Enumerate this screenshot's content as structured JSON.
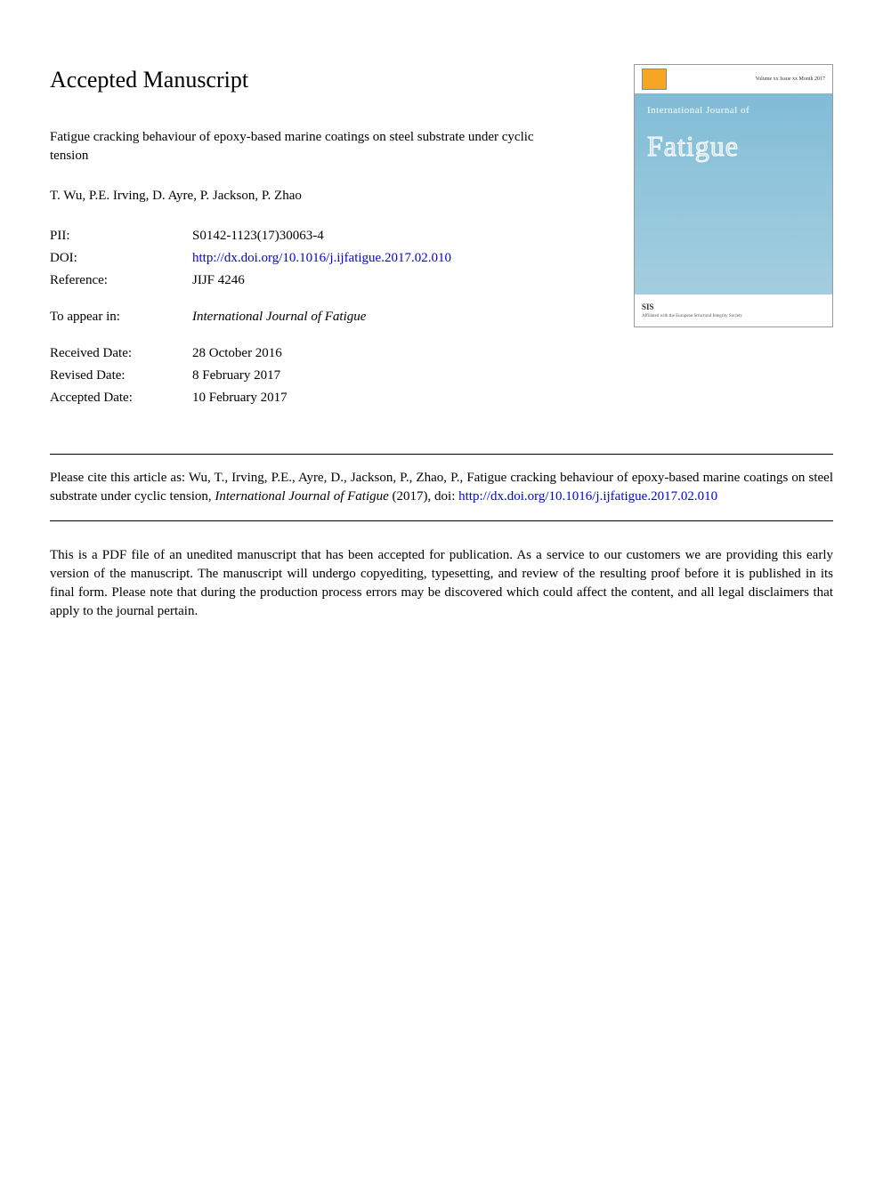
{
  "page": {
    "title": "Accepted Manuscript"
  },
  "article": {
    "title": "Fatigue cracking behaviour of epoxy-based marine coatings on steel substrate under cyclic tension",
    "authors": "T. Wu, P.E. Irving, D. Ayre, P. Jackson, P. Zhao"
  },
  "metadata": {
    "pii_label": "PII:",
    "pii_value": "S0142-1123(17)30063-4",
    "doi_label": "DOI:",
    "doi_value": "http://dx.doi.org/10.1016/j.ijfatigue.2017.02.010",
    "reference_label": "Reference:",
    "reference_value": "JIJF 4246",
    "appear_label": "To appear in:",
    "appear_value": "International Journal of Fatigue",
    "received_label": "Received Date:",
    "received_value": "28 October 2016",
    "revised_label": "Revised Date:",
    "revised_value": "8 February 2017",
    "accepted_label": "Accepted Date:",
    "accepted_value": "10 February 2017"
  },
  "cover": {
    "volume_text": "Volume xx Issue xx Month 2017",
    "journal_label": "International Journal of",
    "journal_name": "Fatigue",
    "sis_text": "SIS",
    "tagline": "Affiliated with the European Structural Integrity Society"
  },
  "citation": {
    "prefix": "Please cite this article as: Wu, T., Irving, P.E., Ayre, D., Jackson, P., Zhao, P., Fatigue cracking behaviour of epoxy-based marine coatings on steel substrate under cyclic tension, ",
    "journal": "International Journal of Fatigue",
    "year": " (2017), doi: ",
    "doi_link": "http://dx.doi.org/10.1016/j.ijfatigue.2017.02.010"
  },
  "disclaimer": {
    "text": "This is a PDF file of an unedited manuscript that has been accepted for publication. As a service to our customers we are providing this early version of the manuscript. The manuscript will undergo copyediting, typesetting, and review of the resulting proof before it is published in its final form. Please note that during the production process errors may be discovered which could affect the content, and all legal disclaimers that apply to the journal pertain."
  },
  "colors": {
    "link_color": "#0000ee",
    "text_color": "#000000",
    "border_color": "#000000",
    "cover_bg_top": "#7bb8d4",
    "cover_bg_bottom": "#a8d0e0",
    "cover_logo_bg": "#f5a623"
  },
  "typography": {
    "body_font": "Georgia, Times New Roman, serif",
    "title_size": 26,
    "body_size": 15,
    "cover_name_size": 32
  }
}
